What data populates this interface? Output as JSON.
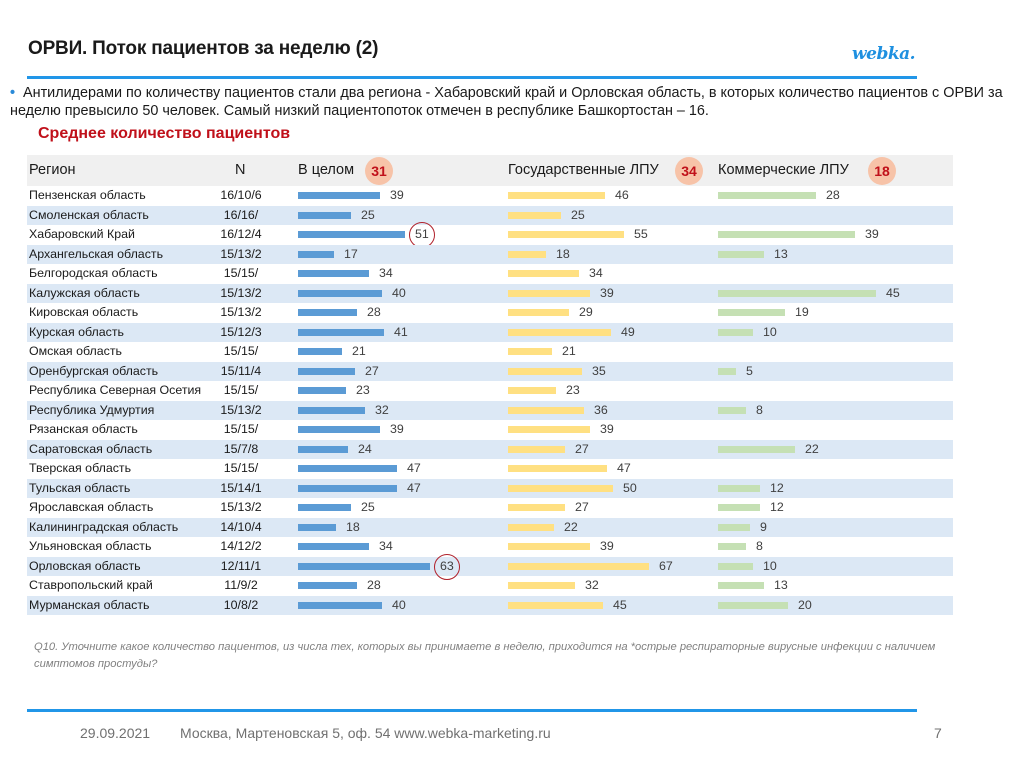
{
  "header": {
    "title": "ОРВИ. Поток пациентов за неделю (2)",
    "logo": "webka."
  },
  "bullet": {
    "icon": "•",
    "text": "Антилидерами по количеству пациентов стали два региона  - Хабаровский край и Орловская область, в которых количество пациентов с ОРВИ за неделю превысило 50 человек. Самый низкий пациентопоток отмечен в республике Башкортостан – 16."
  },
  "subtitle": "Среднее количество пациентов",
  "table": {
    "columns": {
      "region": "Регион",
      "n": "N",
      "total": "В целом",
      "state": "Государственные ЛПУ",
      "commercial": "Коммерческие ЛПУ"
    },
    "averages": {
      "total": "31",
      "state": "34",
      "commercial": "18"
    }
  },
  "chart_data": {
    "type": "bar",
    "orientation": "horizontal",
    "title": "Среднее количество пациентов",
    "categories": [
      "Пензенская область",
      "Смоленская область",
      "Хабаровский Край",
      "Архангельская область",
      "Белгородская область",
      "Калужская область",
      "Кировская область",
      "Курская область",
      "Омская область",
      "Оренбургская область",
      "Республика Северная Осетия",
      "Республика Удмуртия",
      "Рязанская область",
      "Саратовская область",
      "Тверская область",
      "Тульская область",
      "Ярославская область",
      "Калининградская область",
      "Ульяновская область",
      "Орловская область",
      "Ставропольский край",
      "Мурманская область"
    ],
    "n": [
      "16/10/6",
      "16/16/",
      "16/12/4",
      "15/13/2",
      "15/15/",
      "15/13/2",
      "15/13/2",
      "15/12/3",
      "15/15/",
      "15/11/4",
      "15/15/",
      "15/13/2",
      "15/15/",
      "15/7/8",
      "15/15/",
      "15/14/1",
      "15/13/2",
      "14/10/4",
      "14/12/2",
      "12/11/1",
      "11/9/2",
      "10/8/2"
    ],
    "series": [
      {
        "name": "В целом",
        "average": 31,
        "color": "#5b9bd5",
        "values": [
          39,
          25,
          51,
          17,
          34,
          40,
          28,
          41,
          21,
          27,
          23,
          32,
          39,
          24,
          47,
          47,
          25,
          18,
          34,
          63,
          28,
          40
        ],
        "highlighted": [
          2,
          19
        ]
      },
      {
        "name": "Государственные ЛПУ",
        "average": 34,
        "color": "#ffe082",
        "values": [
          46,
          25,
          55,
          18,
          34,
          39,
          29,
          49,
          21,
          35,
          23,
          36,
          39,
          27,
          47,
          50,
          27,
          22,
          39,
          67,
          32,
          45
        ]
      },
      {
        "name": "Коммерческие ЛПУ",
        "average": 18,
        "color": "#c5e0b4",
        "values": [
          28,
          null,
          39,
          13,
          null,
          45,
          19,
          10,
          null,
          5,
          null,
          8,
          null,
          22,
          null,
          12,
          12,
          9,
          8,
          10,
          13,
          20
        ]
      }
    ],
    "xlabel": "",
    "ylabel": "Регион",
    "grid": false,
    "legend": "none"
  },
  "footnote": "Q10. Уточните какое количество пациентов, из числа тех, которых вы принимаете в неделю, приходится на *острые респираторные вирусные инфекции с наличием симптомов простуды?",
  "footer": {
    "date": "29.09.2021",
    "address": "Москва, Мартеновская 5, оф. 54 www.webka-marketing.ru",
    "page": "7"
  }
}
